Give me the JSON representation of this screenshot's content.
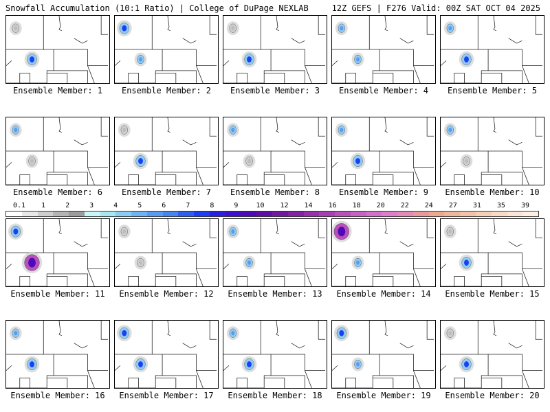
{
  "header": {
    "left_title": "Snowfall Accumulation (10:1 Ratio) | College of DuPage NEXLAB",
    "right_title": "12Z GEFS | F276 Valid: 00Z SAT OCT 04 2025"
  },
  "panel_label_prefix": "Ensemble Member:",
  "members": [
    {
      "label": "Ensemble Member: 1",
      "blobs": [
        {
          "loc": "west-wy",
          "level": "heavy"
        },
        {
          "loc": "nw-corner",
          "level": "light"
        }
      ]
    },
    {
      "label": "Ensemble Member: 2",
      "blobs": [
        {
          "loc": "west-wy",
          "level": "moderate"
        },
        {
          "loc": "nw-corner",
          "level": "heavy"
        }
      ]
    },
    {
      "label": "Ensemble Member: 3",
      "blobs": [
        {
          "loc": "west-wy",
          "level": "heavy"
        },
        {
          "loc": "nw-corner",
          "level": "light"
        }
      ]
    },
    {
      "label": "Ensemble Member: 4",
      "blobs": [
        {
          "loc": "west-wy",
          "level": "moderate"
        },
        {
          "loc": "nw-corner",
          "level": "moderate"
        }
      ]
    },
    {
      "label": "Ensemble Member: 5",
      "blobs": [
        {
          "loc": "west-wy",
          "level": "heavy"
        },
        {
          "loc": "nw-corner",
          "level": "moderate"
        }
      ]
    },
    {
      "label": "Ensemble Member: 6",
      "blobs": [
        {
          "loc": "west-wy",
          "level": "light"
        },
        {
          "loc": "nw-corner",
          "level": "moderate"
        }
      ]
    },
    {
      "label": "Ensemble Member: 7",
      "blobs": [
        {
          "loc": "west-wy",
          "level": "heavy"
        },
        {
          "loc": "nw-corner",
          "level": "light"
        }
      ]
    },
    {
      "label": "Ensemble Member: 8",
      "blobs": [
        {
          "loc": "west-wy",
          "level": "light"
        },
        {
          "loc": "nw-corner",
          "level": "moderate"
        }
      ]
    },
    {
      "label": "Ensemble Member: 9",
      "blobs": [
        {
          "loc": "west-wy",
          "level": "heavy"
        },
        {
          "loc": "nw-corner",
          "level": "moderate"
        }
      ]
    },
    {
      "label": "Ensemble Member: 10",
      "blobs": [
        {
          "loc": "west-wy",
          "level": "light"
        },
        {
          "loc": "nw-corner",
          "level": "moderate"
        }
      ]
    },
    {
      "label": "Ensemble Member: 11",
      "blobs": [
        {
          "loc": "west-wy",
          "level": "extreme"
        },
        {
          "loc": "nw-corner",
          "level": "heavy"
        }
      ]
    },
    {
      "label": "Ensemble Member: 12",
      "blobs": [
        {
          "loc": "west-wy",
          "level": "light"
        },
        {
          "loc": "nw-corner",
          "level": "light"
        }
      ]
    },
    {
      "label": "Ensemble Member: 13",
      "blobs": [
        {
          "loc": "west-wy",
          "level": "moderate"
        },
        {
          "loc": "nw-corner",
          "level": "moderate"
        }
      ]
    },
    {
      "label": "Ensemble Member: 14",
      "blobs": [
        {
          "loc": "west-wy",
          "level": "moderate"
        },
        {
          "loc": "nw-corner",
          "level": "extreme"
        }
      ]
    },
    {
      "label": "Ensemble Member: 15",
      "blobs": [
        {
          "loc": "west-wy",
          "level": "heavy"
        },
        {
          "loc": "nw-corner",
          "level": "light"
        }
      ]
    },
    {
      "label": "Ensemble Member: 16",
      "blobs": [
        {
          "loc": "west-wy",
          "level": "heavy"
        },
        {
          "loc": "nw-corner",
          "level": "moderate"
        }
      ]
    },
    {
      "label": "Ensemble Member: 17",
      "blobs": [
        {
          "loc": "west-wy",
          "level": "heavy"
        },
        {
          "loc": "nw-corner",
          "level": "heavy"
        }
      ]
    },
    {
      "label": "Ensemble Member: 18",
      "blobs": [
        {
          "loc": "west-wy",
          "level": "heavy"
        },
        {
          "loc": "nw-corner",
          "level": "moderate"
        }
      ]
    },
    {
      "label": "Ensemble Member: 19",
      "blobs": [
        {
          "loc": "west-wy",
          "level": "moderate"
        },
        {
          "loc": "nw-corner",
          "level": "heavy"
        }
      ]
    },
    {
      "label": "Ensemble Member: 20",
      "blobs": [
        {
          "loc": "west-wy",
          "level": "heavy"
        },
        {
          "loc": "nw-corner",
          "level": "light"
        }
      ]
    }
  ],
  "legend": {
    "ticks": [
      "0.1",
      "1",
      "2",
      "3",
      "4",
      "5",
      "6",
      "7",
      "8",
      "9",
      "10",
      "12",
      "14",
      "16",
      "18",
      "20",
      "22",
      "24",
      "27",
      "31",
      "35",
      "39"
    ],
    "colors": [
      "#ffffff",
      "#e8e8e8",
      "#cfcfcf",
      "#b5b5b5",
      "#9c9c9c",
      "#c9f6f6",
      "#a6e8f0",
      "#8ccdf6",
      "#6fb3f6",
      "#5a9af2",
      "#4884ef",
      "#2f5ff0",
      "#1d3ef3",
      "#2a1fe0",
      "#3e10cc",
      "#4f0ab8",
      "#600ea8",
      "#7318a3",
      "#8422a6",
      "#9630ad",
      "#a840b3",
      "#b951bb",
      "#c861c4",
      "#d46fcc",
      "#dd7dcb",
      "#e38ab5",
      "#e8999d",
      "#eda88d",
      "#f0b59a",
      "#f3c2a8",
      "#f6cfb7",
      "#f8dbc7",
      "#fae5d6",
      "#fdefe4"
    ]
  }
}
